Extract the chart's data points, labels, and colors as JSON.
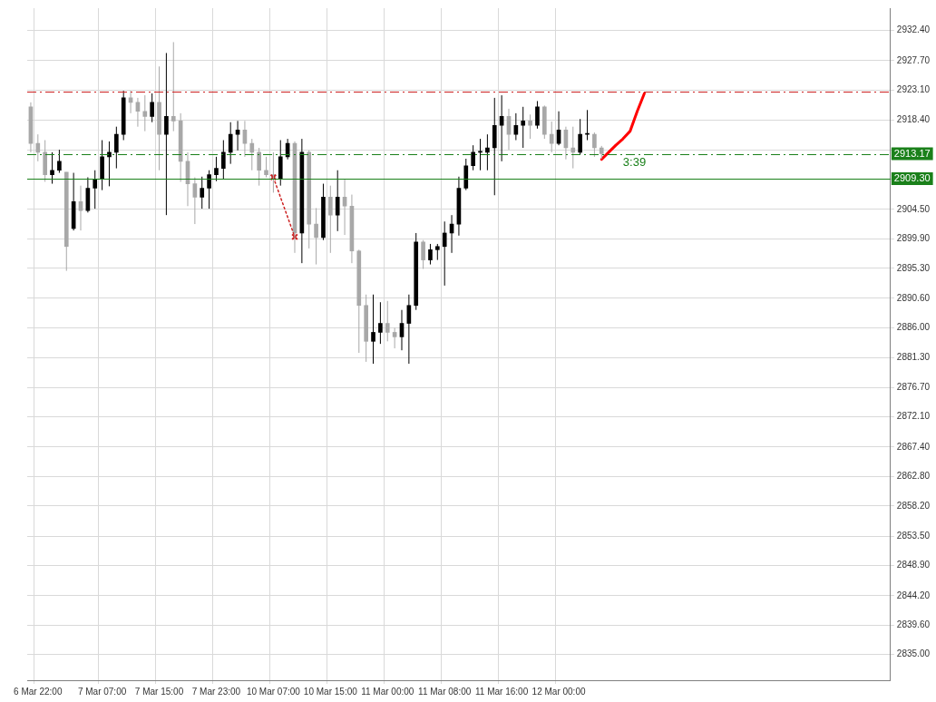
{
  "chart_data": {
    "type": "candlestick",
    "categories": [
      null,
      "6 Mar 22:00",
      null,
      null,
      null,
      null,
      null,
      null,
      null,
      null,
      "7 Mar 07:00",
      null,
      null,
      null,
      null,
      null,
      null,
      null,
      "7 Mar 15:00",
      null,
      null,
      null,
      null,
      null,
      null,
      null,
      "7 Mar 23:00",
      null,
      null,
      null,
      null,
      null,
      null,
      null,
      "10 Mar 07:00",
      null,
      null,
      null,
      null,
      null,
      null,
      null,
      "10 Mar 15:00",
      null,
      null,
      null,
      null,
      null,
      null,
      null,
      "11 Mar 00:00",
      null,
      null,
      null,
      null,
      null,
      null,
      null,
      "11 Mar 08:00",
      null,
      null,
      null,
      null,
      null,
      null,
      null,
      "11 Mar 16:00",
      null,
      null,
      null,
      null,
      null,
      null,
      null,
      "12 Mar 00:00",
      null,
      null,
      null,
      null,
      null,
      null,
      null,
      null,
      null,
      null,
      null,
      null,
      null,
      null,
      null,
      null,
      null,
      null,
      null,
      null,
      null,
      null,
      null,
      null,
      null,
      null,
      null,
      null,
      null,
      null,
      null,
      null,
      null,
      null,
      null,
      null,
      null,
      null,
      null,
      null,
      null,
      null,
      null,
      null,
      null,
      null
    ],
    "ohlc": [
      [
        2920.5,
        2921.2,
        2913.4,
        2914.8
      ],
      [
        2914.8,
        2916.2,
        2912.0,
        2913.4
      ],
      [
        2913.4,
        2915.3,
        2908.8,
        2909.9
      ],
      [
        2909.9,
        2913.4,
        2908.5,
        2910.6
      ],
      [
        2910.6,
        2913.8,
        2910.2,
        2912.0
      ],
      [
        2910.3,
        2910.3,
        2894.9,
        2898.7
      ],
      [
        2901.5,
        2910.2,
        2901.2,
        2905.7
      ],
      [
        2905.7,
        2908.2,
        2901.2,
        2904.3
      ],
      [
        2904.3,
        2909.5,
        2904.0,
        2907.8
      ],
      [
        2907.8,
        2910.6,
        2904.6,
        2909.2
      ],
      [
        2909.2,
        2915.3,
        2907.5,
        2912.7
      ],
      [
        2912.7,
        2915.1,
        2908.1,
        2913.4
      ],
      [
        2913.4,
        2917.4,
        2910.9,
        2916.2
      ],
      [
        2916.2,
        2923.0,
        2915.3,
        2921.9
      ],
      [
        2921.9,
        2923.0,
        2919.5,
        2921.2
      ],
      [
        2921.2,
        2921.9,
        2917.4,
        2919.8
      ],
      [
        2919.8,
        2922.3,
        2916.7,
        2919.0
      ],
      [
        2919.0,
        2922.6,
        2918.1,
        2921.2
      ],
      [
        2921.2,
        2926.8,
        2910.6,
        2916.2
      ],
      [
        2916.2,
        2928.9,
        2903.6,
        2919.0
      ],
      [
        2919.0,
        2930.6,
        2916.7,
        2918.3
      ],
      [
        2918.3,
        2919.5,
        2908.8,
        2912.0
      ],
      [
        2912.0,
        2913.4,
        2905.0,
        2908.5
      ],
      [
        2908.5,
        2909.5,
        2902.2,
        2906.4
      ],
      [
        2906.4,
        2909.6,
        2904.6,
        2907.8
      ],
      [
        2907.8,
        2910.6,
        2904.6,
        2909.9
      ],
      [
        2909.9,
        2912.7,
        2908.9,
        2910.9
      ],
      [
        2910.9,
        2915.3,
        2909.2,
        2913.4
      ],
      [
        2913.4,
        2918.1,
        2911.6,
        2916.2
      ],
      [
        2916.2,
        2918.3,
        2913.7,
        2916.9
      ],
      [
        2916.9,
        2918.3,
        2912.7,
        2914.8
      ],
      [
        2914.8,
        2915.5,
        2910.6,
        2913.4
      ],
      [
        2913.4,
        2914.1,
        2908.2,
        2910.6
      ],
      [
        2910.6,
        2912.7,
        2909.5,
        2909.9
      ],
      [
        2909.9,
        2913.4,
        2907.1,
        2909.2
      ],
      [
        2909.2,
        2915.3,
        2908.2,
        2912.7
      ],
      [
        2912.7,
        2915.5,
        2912.3,
        2914.8
      ],
      [
        2914.8,
        2915.1,
        2897.7,
        2900.8
      ],
      [
        2900.8,
        2915.5,
        2896.1,
        2913.4
      ],
      [
        2913.4,
        2913.7,
        2898.4,
        2902.2
      ],
      [
        2902.2,
        2904.7,
        2895.9,
        2900.1
      ],
      [
        2900.1,
        2908.5,
        2899.7,
        2906.4
      ],
      [
        2906.4,
        2908.2,
        2897.7,
        2903.6
      ],
      [
        2903.6,
        2910.6,
        2901.1,
        2906.4
      ],
      [
        2906.4,
        2909.2,
        2900.5,
        2905.0
      ],
      [
        2905.0,
        2906.8,
        2896.1,
        2898.0
      ],
      [
        2898.0,
        2898.2,
        2882.1,
        2889.5
      ],
      [
        2889.5,
        2891.2,
        2880.7,
        2883.9
      ],
      [
        2883.9,
        2891.2,
        2880.4,
        2885.3
      ],
      [
        2885.3,
        2890.0,
        2883.5,
        2886.7
      ],
      [
        2886.7,
        2890.2,
        2883.9,
        2885.3
      ],
      [
        2885.3,
        2886.0,
        2882.8,
        2884.6
      ],
      [
        2884.6,
        2888.8,
        2882.5,
        2886.7
      ],
      [
        2886.7,
        2891.2,
        2880.4,
        2889.5
      ],
      [
        2889.5,
        2900.8,
        2888.8,
        2899.4
      ],
      [
        2899.4,
        2899.7,
        2895.2,
        2896.6
      ],
      [
        2896.6,
        2899.1,
        2895.9,
        2898.2
      ],
      [
        2898.2,
        2899.1,
        2896.6,
        2898.7
      ],
      [
        2898.7,
        2902.6,
        2892.6,
        2900.8
      ],
      [
        2900.8,
        2903.6,
        2897.7,
        2902.2
      ],
      [
        2902.2,
        2909.6,
        2900.4,
        2907.8
      ],
      [
        2907.8,
        2912.4,
        2907.5,
        2911.3
      ],
      [
        2911.3,
        2914.5,
        2910.6,
        2913.4
      ],
      [
        2913.4,
        2915.5,
        2910.6,
        2913.4
      ],
      [
        2913.4,
        2916.2,
        2910.6,
        2914.1
      ],
      [
        2914.1,
        2921.9,
        2906.7,
        2917.6
      ],
      [
        2917.6,
        2922.3,
        2912.0,
        2919.0
      ],
      [
        2919.0,
        2920.2,
        2913.8,
        2916.2
      ],
      [
        2916.2,
        2919.5,
        2915.3,
        2917.6
      ],
      [
        2917.6,
        2920.5,
        2914.1,
        2918.3
      ],
      [
        2918.3,
        2919.3,
        2915.5,
        2917.6
      ],
      [
        2917.6,
        2921.4,
        2917.1,
        2920.5
      ],
      [
        2920.5,
        2920.7,
        2915.5,
        2916.2
      ],
      [
        2916.2,
        2918.2,
        2913.4,
        2914.8
      ],
      [
        2914.8,
        2919.8,
        2914.5,
        2916.9
      ],
      [
        2916.9,
        2917.4,
        2912.3,
        2914.1
      ],
      [
        2914.1,
        2917.4,
        2910.9,
        2913.4
      ],
      [
        2913.4,
        2918.6,
        2913.1,
        2916.2
      ],
      [
        2916.2,
        2920.0,
        2915.3,
        2916.2
      ],
      [
        2916.2,
        2916.5,
        2912.7,
        2914.1
      ],
      [
        2914.1,
        2914.4,
        2912.4,
        2913.2
      ],
      null,
      null,
      null,
      null,
      null,
      null,
      null,
      null,
      null,
      null,
      null,
      null,
      null,
      null,
      null,
      null,
      null,
      null,
      null,
      null,
      null,
      null,
      null,
      null,
      null,
      null,
      null,
      null,
      null,
      null,
      null,
      null,
      null,
      null,
      null,
      null,
      null,
      null,
      null,
      null
    ],
    "series": [
      {
        "type": "line",
        "color": "#cc2020",
        "line_style": "dotted",
        "marker": "cross",
        "values": [
          null,
          null,
          null,
          null,
          null,
          null,
          null,
          null,
          null,
          null,
          null,
          null,
          null,
          null,
          null,
          null,
          null,
          null,
          null,
          null,
          null,
          null,
          null,
          null,
          null,
          null,
          null,
          null,
          null,
          null,
          null,
          null,
          null,
          null,
          2909.5,
          null,
          null,
          2900.2,
          null,
          null,
          null,
          null,
          null,
          null,
          null,
          null,
          null,
          null,
          null,
          null,
          null,
          null,
          null,
          null,
          null,
          null,
          null,
          null,
          null,
          null,
          null,
          null,
          null,
          null,
          null,
          null,
          null,
          null,
          null,
          null,
          null,
          null,
          null,
          null,
          null,
          null,
          null,
          null,
          null,
          null,
          null,
          null,
          null,
          null,
          null,
          null,
          null,
          null,
          null,
          null,
          null,
          null,
          null,
          null,
          null,
          null,
          null,
          null,
          null,
          null,
          null,
          null,
          null,
          null,
          null,
          null,
          null,
          null,
          null,
          null,
          null,
          null,
          null,
          null,
          null,
          null,
          null,
          null,
          null,
          null,
          null
        ]
      },
      {
        "type": "line",
        "color": "#ff0000",
        "line_style": "solid",
        "marker": "none",
        "values": [
          null,
          null,
          null,
          null,
          null,
          null,
          null,
          null,
          null,
          null,
          null,
          null,
          null,
          null,
          null,
          null,
          null,
          null,
          null,
          null,
          null,
          null,
          null,
          null,
          null,
          null,
          null,
          null,
          null,
          null,
          null,
          null,
          null,
          null,
          null,
          null,
          null,
          null,
          null,
          null,
          null,
          null,
          null,
          null,
          null,
          null,
          null,
          null,
          null,
          null,
          null,
          null,
          null,
          null,
          null,
          null,
          null,
          null,
          null,
          null,
          null,
          null,
          null,
          null,
          null,
          null,
          null,
          null,
          null,
          null,
          null,
          null,
          null,
          null,
          null,
          null,
          null,
          null,
          null,
          null,
          2912.3,
          2913.4,
          2914.5,
          2915.5,
          2916.7,
          2919.8,
          2922.6,
          null,
          null,
          null,
          null,
          null,
          null,
          null,
          null,
          null,
          null,
          null,
          null,
          null,
          null,
          null,
          null,
          null,
          null,
          null,
          null,
          null,
          null,
          null,
          null,
          null,
          null,
          null,
          null,
          null,
          null,
          null,
          null,
          null,
          null
        ]
      }
    ],
    "ylim": [
      2831.0,
      2935.9
    ],
    "yticks": [
      {
        "value": 2835.0,
        "label": "2835.00"
      },
      {
        "value": 2839.6,
        "label": "2839.60"
      },
      {
        "value": 2844.2,
        "label": "2844.20"
      },
      {
        "value": 2848.9,
        "label": "2848.90"
      },
      {
        "value": 2853.5,
        "label": "2853.50"
      },
      {
        "value": 2858.2,
        "label": "2858.20"
      },
      {
        "value": 2862.8,
        "label": "2862.80"
      },
      {
        "value": 2867.4,
        "label": "2867.40"
      },
      {
        "value": 2872.1,
        "label": "2872.10"
      },
      {
        "value": 2876.7,
        "label": "2876.70"
      },
      {
        "value": 2881.3,
        "label": "2881.30"
      },
      {
        "value": 2886.0,
        "label": "2886.00"
      },
      {
        "value": 2890.6,
        "label": "2890.60"
      },
      {
        "value": 2895.3,
        "label": "2895.30"
      },
      {
        "value": 2899.9,
        "label": "2899.90"
      },
      {
        "value": 2904.5,
        "label": "2904.50"
      },
      {
        "value": 2909.2,
        "label": null
      },
      {
        "value": 2913.8,
        "label": null
      },
      {
        "value": 2918.4,
        "label": "2918.40"
      },
      {
        "value": 2923.1,
        "label": "2923.10"
      },
      {
        "value": 2927.7,
        "label": "2927.70"
      },
      {
        "value": 2932.4,
        "label": "2932.40"
      }
    ],
    "ref_lines": [
      {
        "axis": "y",
        "value": 2922.9,
        "color": "#cc2020",
        "line_style": "dashed"
      },
      {
        "axis": "y",
        "value": 2913.17,
        "label": "2913.17",
        "color": "#1a801a",
        "line_style": "dashed"
      },
      {
        "axis": "y",
        "value": 2909.3,
        "label": "2909.30",
        "color": "#1a801a",
        "line_style": "solid"
      }
    ],
    "annotations": [
      "3:39"
    ],
    "grid": true,
    "legend": false
  }
}
